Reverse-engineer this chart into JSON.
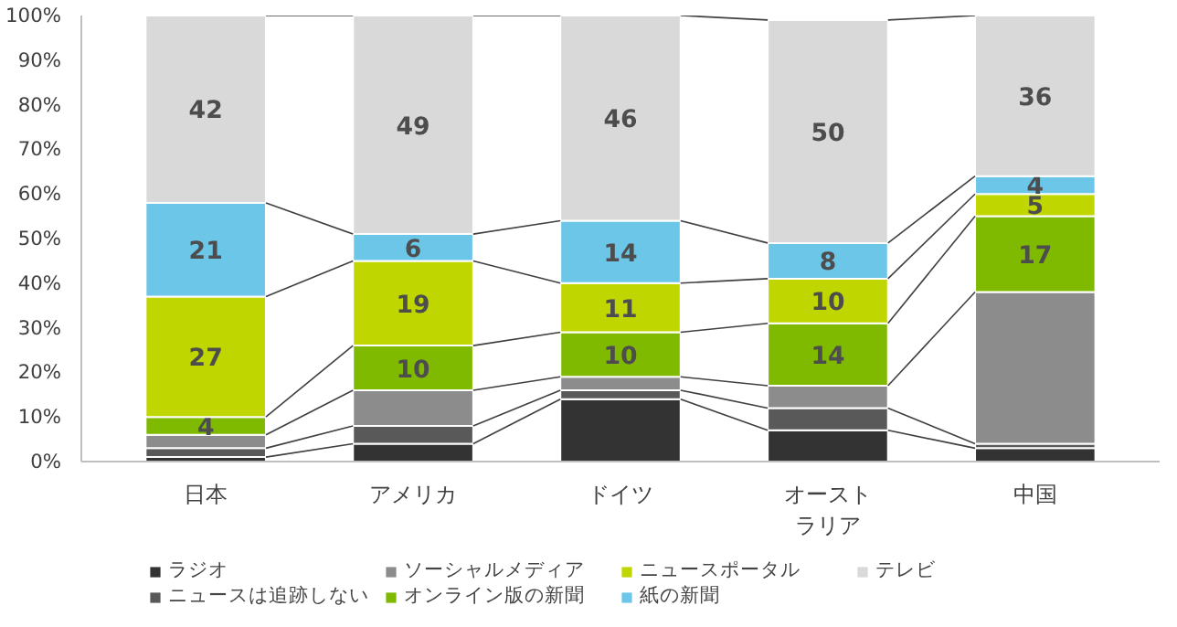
{
  "chart_data": {
    "type": "bar",
    "stacked": true,
    "categories": [
      "日本",
      "アメリカ",
      "ドイツ",
      "オーストラリア",
      "中国"
    ],
    "series": [
      {
        "name": "ラジオ",
        "color": "#333333",
        "values": [
          1,
          4,
          14,
          7,
          3
        ]
      },
      {
        "name": "ニュースは追跡しない",
        "color": "#595959",
        "values": [
          2,
          4,
          2,
          5,
          1
        ]
      },
      {
        "name": "ソーシャルメディア",
        "color": "#8c8c8c",
        "values": [
          3,
          8,
          3,
          5,
          34
        ]
      },
      {
        "name": "オンライン版の新聞",
        "color": "#7fba00",
        "values": [
          4,
          10,
          10,
          14,
          17
        ],
        "value_labels": [
          "4",
          "10",
          "10",
          "14",
          "17"
        ]
      },
      {
        "name": "ニュースポータル",
        "color": "#c0d600",
        "values": [
          27,
          19,
          11,
          10,
          5
        ],
        "value_labels": [
          "27",
          "19",
          "11",
          "10",
          "5"
        ]
      },
      {
        "name": "紙の新聞",
        "color": "#6cc6e8",
        "values": [
          21,
          6,
          14,
          8,
          4
        ],
        "value_labels": [
          "21",
          "6",
          "14",
          "8",
          "4"
        ]
      },
      {
        "name": "テレビ",
        "color": "#d9d9d9",
        "values": [
          42,
          49,
          46,
          50,
          36
        ],
        "value_labels": [
          "42",
          "49",
          "46",
          "50",
          "36"
        ]
      }
    ],
    "ylim": [
      0,
      100
    ],
    "yticks": [
      {
        "value": 0,
        "label": "0%"
      },
      {
        "value": 10,
        "label": "10%"
      },
      {
        "value": 20,
        "label": "20%"
      },
      {
        "value": 30,
        "label": "30%"
      },
      {
        "value": 40,
        "label": "40%"
      },
      {
        "value": 50,
        "label": "50%"
      },
      {
        "value": 60,
        "label": "60%"
      },
      {
        "value": 70,
        "label": "70%"
      },
      {
        "value": 80,
        "label": "80%"
      },
      {
        "value": 90,
        "label": "90%"
      },
      {
        "value": 100,
        "label": "100%"
      }
    ],
    "grid": false,
    "legend": "bottom"
  }
}
